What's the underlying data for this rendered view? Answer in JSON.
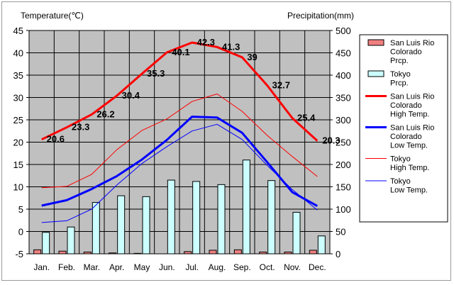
{
  "chart_data": {
    "type": "bar",
    "left_axis_title": "Temperature(℃)",
    "right_axis_title": "Precipitation(mm)",
    "categories": [
      "Jan.",
      "Feb.",
      "Mar.",
      "Apr.",
      "May",
      "Jun.",
      "Jul.",
      "Aug.",
      "Sep.",
      "Oct.",
      "Nov.",
      "Dec."
    ],
    "y_left": {
      "min": -5,
      "max": 45,
      "step": 5
    },
    "y_right": {
      "min": 0,
      "max": 500,
      "step": 50
    },
    "grid": true,
    "legend_position": "right",
    "bar_series": [
      {
        "name": "San Luis Rio Colorado Prcp.",
        "legend_lines": [
          "San Luis Rio",
          "Colorado",
          "Prcp."
        ],
        "color": "#f08080",
        "values": [
          9,
          6,
          4,
          2,
          1,
          0,
          5,
          8,
          9,
          4,
          4,
          8
        ]
      },
      {
        "name": "Tokyo Prcp.",
        "legend_lines": [
          "Tokyo",
          "Prcp."
        ],
        "color": "#ccffff",
        "values": [
          48,
          60,
          115,
          130,
          128,
          165,
          162,
          155,
          210,
          164,
          93,
          40
        ]
      }
    ],
    "line_series": [
      {
        "name": "San Luis Rio Colorado High Temp.",
        "legend_lines": [
          "San Luis Rio",
          "Colorado",
          "High Temp."
        ],
        "color": "#ff0000",
        "width": 3,
        "values": [
          20.6,
          23.3,
          26.2,
          30.4,
          35.3,
          40.1,
          42.3,
          41.3,
          39,
          32.7,
          25.4,
          20.3
        ],
        "labels": [
          "20.6",
          "23.3",
          "26.2",
          "30.4",
          "35.3",
          "40.1",
          "42.3",
          "41.3",
          "39",
          "32.7",
          "25.4",
          "20.3"
        ]
      },
      {
        "name": "San Luis Rio Colorado Low Temp.",
        "legend_lines": [
          "San Luis Rio",
          "Colorado",
          "Low Temp."
        ],
        "color": "#0000ff",
        "width": 3,
        "values": [
          5.8,
          7,
          9.5,
          12.4,
          16.1,
          20.5,
          25.7,
          25.5,
          22.1,
          15.5,
          8.8,
          5.7
        ]
      },
      {
        "name": "Tokyo High Temp.",
        "legend_lines": [
          "Tokyo",
          "High Temp."
        ],
        "color": "#ff0000",
        "width": 1,
        "values": [
          9.8,
          10.1,
          12.8,
          18.3,
          22.6,
          25.2,
          29.1,
          30.8,
          26.9,
          21.5,
          16.8,
          12.3
        ]
      },
      {
        "name": "Tokyo Low Temp.",
        "legend_lines": [
          "Tokyo",
          "Low Temp."
        ],
        "color": "#0000ff",
        "width": 1,
        "values": [
          2,
          2.4,
          5,
          10.4,
          15.2,
          19,
          22.5,
          24,
          20.6,
          14.8,
          9.4,
          4.8
        ]
      }
    ]
  }
}
